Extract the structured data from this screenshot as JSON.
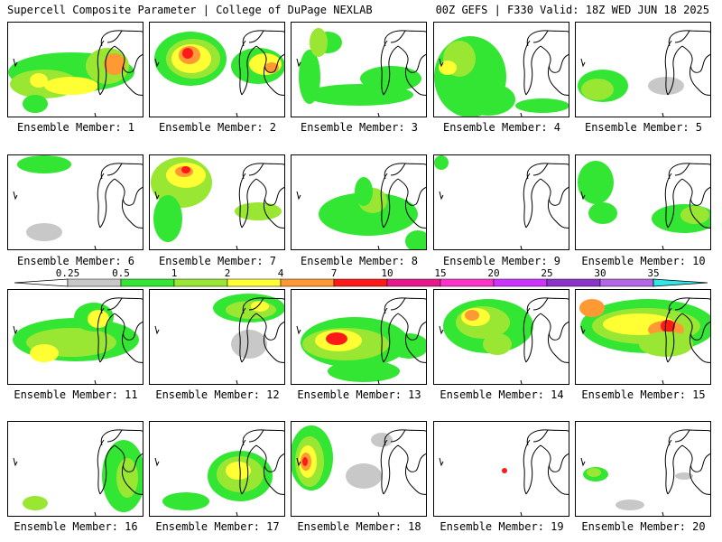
{
  "header": {
    "left": "Supercell Composite Parameter | College of DuPage NEXLAB",
    "right": "00Z GEFS | F330 Valid: 18Z WED JUN 18 2025"
  },
  "colorbar": {
    "labels": [
      "0.25",
      "0.5",
      "1",
      "2",
      "4",
      "7",
      "10",
      "15",
      "20",
      "25",
      "30",
      "35"
    ],
    "colors": [
      "#c8c8c8",
      "#33e633",
      "#99e633",
      "#ffff33",
      "#ff9933",
      "#ff1a1a",
      "#e6198c",
      "#ff33cc",
      "#cc33ff",
      "#8c33cc",
      "#b366e6",
      "#33e6e6"
    ]
  },
  "members": [
    {
      "label": "Ensemble Member: 1"
    },
    {
      "label": "Ensemble Member: 2"
    },
    {
      "label": "Ensemble Member: 3"
    },
    {
      "label": "Ensemble Member: 4"
    },
    {
      "label": "Ensemble Member: 5"
    },
    {
      "label": "Ensemble Member: 6"
    },
    {
      "label": "Ensemble Member: 7"
    },
    {
      "label": "Ensemble Member: 8"
    },
    {
      "label": "Ensemble Member: 9"
    },
    {
      "label": "Ensemble Member: 10"
    },
    {
      "label": "Ensemble Member: 11"
    },
    {
      "label": "Ensemble Member: 12"
    },
    {
      "label": "Ensemble Member: 13"
    },
    {
      "label": "Ensemble Member: 14"
    },
    {
      "label": "Ensemble Member: 15"
    },
    {
      "label": "Ensemble Member: 16"
    },
    {
      "label": "Ensemble Member: 17"
    },
    {
      "label": "Ensemble Member: 18"
    },
    {
      "label": "Ensemble Member: 19"
    },
    {
      "label": "Ensemble Member: 20"
    }
  ]
}
